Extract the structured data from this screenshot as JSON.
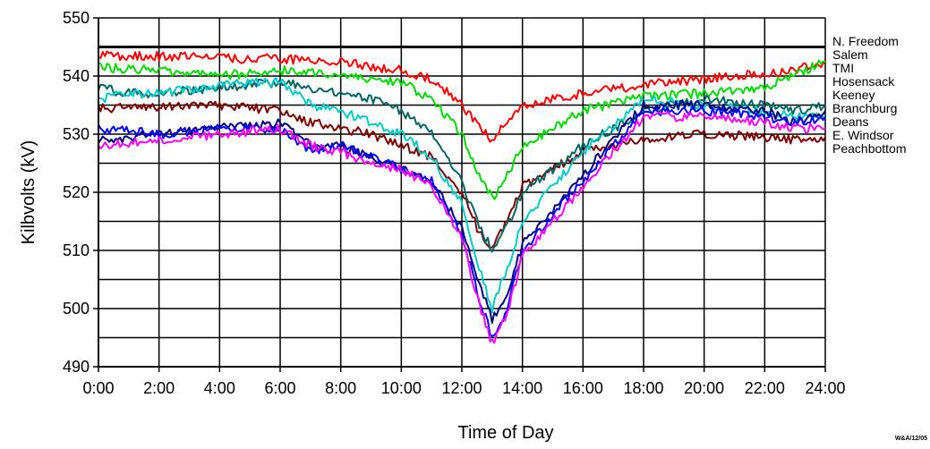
{
  "chart_data": {
    "type": "line",
    "xlabel": "Time of Day",
    "ylabel": "Kilbvolts (kV)",
    "ylim": [
      490,
      550
    ],
    "xlim": [
      0,
      24
    ],
    "x_ticks": [
      "0:00",
      "2:00",
      "4:00",
      "6:00",
      "8:00",
      "10:00",
      "12:00",
      "14:00",
      "16:00",
      "18:00",
      "20:00",
      "22:00",
      "24:00"
    ],
    "y_ticks": [
      "490",
      "500",
      "510",
      "520",
      "530",
      "540",
      "550"
    ],
    "grid": true,
    "legend_placement": "right",
    "stamp": "W&A/12/05",
    "series": [
      {
        "name": "N. Freedom",
        "color": "#000000",
        "points": [
          [
            0,
            545
          ],
          [
            24,
            545
          ]
        ]
      },
      {
        "name": "Salem",
        "color": "#ff0000",
        "points": [
          [
            0,
            543.5
          ],
          [
            2,
            543.5
          ],
          [
            4,
            543
          ],
          [
            6,
            543
          ],
          [
            8,
            542.5
          ],
          [
            9,
            541.5
          ],
          [
            10,
            541
          ],
          [
            11,
            539.5
          ],
          [
            12,
            535
          ],
          [
            12.5,
            532
          ],
          [
            13,
            529
          ],
          [
            13.5,
            532
          ],
          [
            14,
            535
          ],
          [
            16,
            537
          ],
          [
            18,
            538.5
          ],
          [
            20,
            539.5
          ],
          [
            22,
            540.5
          ],
          [
            23,
            541
          ],
          [
            24,
            542.5
          ]
        ]
      },
      {
        "name": "TMI",
        "color": "#00dd00",
        "points": [
          [
            0,
            541.5
          ],
          [
            2,
            541
          ],
          [
            4,
            540
          ],
          [
            6,
            541
          ],
          [
            8,
            540
          ],
          [
            9,
            539.5
          ],
          [
            10,
            539
          ],
          [
            11,
            536
          ],
          [
            12,
            530
          ],
          [
            12.5,
            524
          ],
          [
            13,
            519
          ],
          [
            13.5,
            523
          ],
          [
            14,
            528
          ],
          [
            16,
            534
          ],
          [
            18,
            536.5
          ],
          [
            20,
            537
          ],
          [
            22,
            538
          ],
          [
            24,
            542.5
          ]
        ]
      },
      {
        "name": "Hosensack",
        "color": "#00cccc",
        "points": [
          [
            0,
            536
          ],
          [
            1,
            537
          ],
          [
            2,
            537
          ],
          [
            4,
            538.5
          ],
          [
            6,
            539
          ],
          [
            7,
            535
          ],
          [
            8,
            534
          ],
          [
            9,
            532
          ],
          [
            10,
            530
          ],
          [
            11,
            526
          ],
          [
            12,
            518
          ],
          [
            12.5,
            508
          ],
          [
            13,
            500
          ],
          [
            13.5,
            507
          ],
          [
            14,
            515
          ],
          [
            16,
            527
          ],
          [
            18,
            536
          ],
          [
            20,
            535
          ],
          [
            22,
            534
          ],
          [
            23,
            533
          ],
          [
            24,
            533
          ]
        ]
      },
      {
        "name": "Keeney",
        "color": "#006666",
        "points": [
          [
            0,
            538
          ],
          [
            1,
            537
          ],
          [
            2,
            537
          ],
          [
            4,
            538
          ],
          [
            6,
            539
          ],
          [
            7,
            538
          ],
          [
            8,
            537
          ],
          [
            9,
            536
          ],
          [
            10,
            534
          ],
          [
            11,
            530
          ],
          [
            12,
            522
          ],
          [
            12.5,
            515
          ],
          [
            13,
            510
          ],
          [
            13.5,
            514
          ],
          [
            14,
            520
          ],
          [
            16,
            528
          ],
          [
            18,
            534
          ],
          [
            20,
            536
          ],
          [
            22,
            535
          ],
          [
            23,
            534
          ],
          [
            24,
            535
          ]
        ]
      },
      {
        "name": "Branchburg",
        "color": "#0000ff",
        "points": [
          [
            0,
            531
          ],
          [
            2,
            530
          ],
          [
            4,
            531
          ],
          [
            6,
            531
          ],
          [
            7,
            527
          ],
          [
            8,
            528
          ],
          [
            9,
            526
          ],
          [
            10,
            524
          ],
          [
            11,
            522
          ],
          [
            12,
            513
          ],
          [
            12.5,
            503
          ],
          [
            13,
            495
          ],
          [
            13.5,
            500
          ],
          [
            14,
            510
          ],
          [
            16,
            522
          ],
          [
            18,
            534
          ],
          [
            20,
            534
          ],
          [
            22,
            533
          ],
          [
            23,
            532
          ],
          [
            24,
            533
          ]
        ]
      },
      {
        "name": "Deans",
        "color": "#ff00ff",
        "points": [
          [
            0,
            528
          ],
          [
            2,
            529
          ],
          [
            4,
            530
          ],
          [
            6,
            531
          ],
          [
            7,
            528
          ],
          [
            8,
            527
          ],
          [
            9,
            525
          ],
          [
            10,
            524
          ],
          [
            11,
            521
          ],
          [
            12,
            512
          ],
          [
            12.5,
            502
          ],
          [
            13,
            494
          ],
          [
            13.5,
            499
          ],
          [
            14,
            509
          ],
          [
            16,
            521
          ],
          [
            18,
            533
          ],
          [
            20,
            533
          ],
          [
            22,
            532
          ],
          [
            23,
            531
          ],
          [
            24,
            531
          ]
        ]
      },
      {
        "name": "E. Windsor",
        "color": "#000080",
        "points": [
          [
            0,
            529
          ],
          [
            2,
            530
          ],
          [
            4,
            531
          ],
          [
            6,
            532
          ],
          [
            7,
            528
          ],
          [
            8,
            528
          ],
          [
            9,
            526
          ],
          [
            10,
            524
          ],
          [
            11,
            522
          ],
          [
            12,
            514
          ],
          [
            12.5,
            505
          ],
          [
            13,
            498
          ],
          [
            13.5,
            503
          ],
          [
            14,
            511
          ],
          [
            16,
            523
          ],
          [
            18,
            535
          ],
          [
            20,
            535
          ],
          [
            22,
            534
          ],
          [
            23,
            532
          ],
          [
            24,
            534
          ]
        ]
      },
      {
        "name": "Peachbottom",
        "color": "#800000",
        "points": [
          [
            0,
            534.5
          ],
          [
            2,
            534.5
          ],
          [
            4,
            535
          ],
          [
            6,
            534
          ],
          [
            7,
            532
          ],
          [
            8,
            531
          ],
          [
            9,
            530
          ],
          [
            10,
            528
          ],
          [
            11,
            526
          ],
          [
            12,
            520
          ],
          [
            12.5,
            514
          ],
          [
            13,
            510
          ],
          [
            13.5,
            515
          ],
          [
            14,
            521
          ],
          [
            16,
            527
          ],
          [
            18,
            529
          ],
          [
            20,
            530
          ],
          [
            22,
            529.5
          ],
          [
            23,
            529
          ],
          [
            24,
            529.5
          ]
        ]
      }
    ]
  }
}
